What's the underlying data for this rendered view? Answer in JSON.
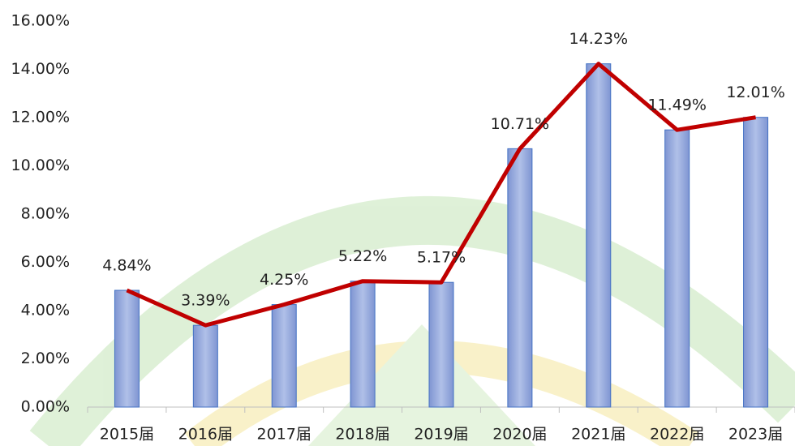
{
  "chart_data": {
    "type": "bar",
    "categories": [
      "2015届",
      "2016届",
      "2017届",
      "2018届",
      "2019届",
      "2020届",
      "2021届",
      "2022届",
      "2023届"
    ],
    "values": [
      4.84,
      3.39,
      4.25,
      5.22,
      5.17,
      10.71,
      14.23,
      11.49,
      12.01
    ],
    "value_labels": [
      "4.84%",
      "3.39%",
      "4.25%",
      "5.22%",
      "5.17%",
      "10.71%",
      "14.23%",
      "11.49%",
      "12.01%"
    ],
    "color": "#8fa3d9",
    "line_overlay": true,
    "line_color": "#c00000",
    "ylim": [
      0,
      16
    ],
    "yticks": [
      {
        "value": 0,
        "label": "0.00%"
      },
      {
        "value": 2,
        "label": "2.00%"
      },
      {
        "value": 4,
        "label": "4.00%"
      },
      {
        "value": 6,
        "label": "6.00%"
      },
      {
        "value": 8,
        "label": "8.00%"
      },
      {
        "value": 10,
        "label": "10.00%"
      },
      {
        "value": 12,
        "label": "12.00%"
      },
      {
        "value": 14,
        "label": "14.00%"
      },
      {
        "value": 16,
        "label": "16.00%"
      }
    ],
    "grid": false
  }
}
